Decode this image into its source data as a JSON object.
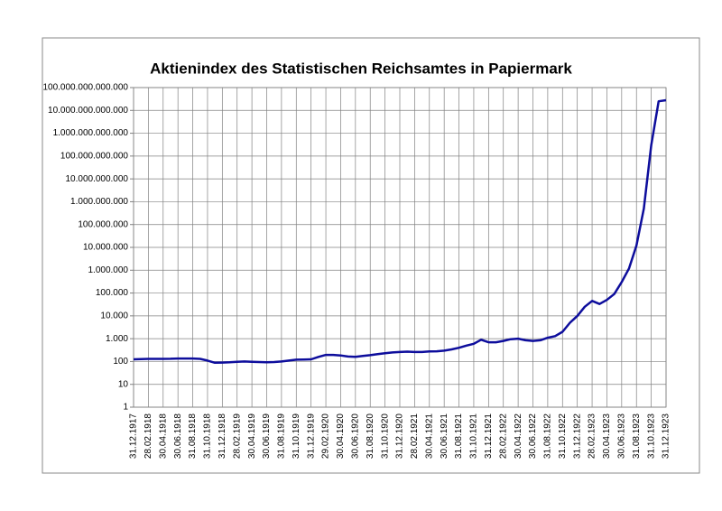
{
  "chart_data": {
    "type": "line",
    "title": "Aktienindex des Statistischen Reichsamtes in Papiermark",
    "categories": [
      "31.12.1917",
      null,
      "28.02.1918",
      null,
      "30.04.1918",
      null,
      "30.06.1918",
      null,
      "31.08.1918",
      null,
      "31.10.1918",
      null,
      "31.12.1918",
      null,
      "28.02.1919",
      null,
      "30.04.1919",
      null,
      "30.06.1919",
      null,
      "31.08.1919",
      null,
      "31.10.1919",
      null,
      "31.12.1919",
      null,
      "29.02.1920",
      null,
      "30.04.1920",
      null,
      "30.06.1920",
      null,
      "31.08.1920",
      null,
      "31.10.1920",
      null,
      "31.12.1920",
      null,
      "28.02.1921",
      null,
      "30.04.1921",
      null,
      "30.06.1921",
      null,
      "31.08.1921",
      null,
      "31.10.1921",
      null,
      "31.12.1921",
      null,
      "28.02.1922",
      null,
      "30.04.1922",
      null,
      "30.06.1922",
      null,
      "31.08.1922",
      null,
      "31.10.1922",
      null,
      "31.12.1922",
      null,
      "28.02.1923",
      null,
      "30.04.1923",
      null,
      "30.06.1923",
      null,
      "31.08.1923",
      null,
      "31.10.1923",
      null,
      "31.12.1923"
    ],
    "series": [
      {
        "name": "Aktienindex",
        "color": "#0d0d9c",
        "values": [
          125,
          128,
          130,
          130,
          130,
          132,
          135,
          135,
          135,
          130,
          110,
          88,
          90,
          92,
          98,
          100,
          98,
          95,
          92,
          95,
          100,
          110,
          120,
          122,
          125,
          160,
          195,
          195,
          185,
          165,
          160,
          175,
          190,
          210,
          230,
          250,
          260,
          270,
          260,
          260,
          275,
          280,
          300,
          340,
          400,
          500,
          600,
          900,
          700,
          700,
          800,
          950,
          1000,
          850,
          800,
          850,
          1100,
          1300,
          2000,
          5000,
          10000,
          25000,
          45000,
          33000,
          50000,
          90000,
          300000,
          1200000,
          12000000,
          500000000,
          300000000000,
          25000000000000,
          28000000000000
        ]
      }
    ],
    "log_scale": true,
    "ylim": [
      1,
      100000000000000
    ],
    "yticks": [
      1,
      10,
      100,
      {
        "value": 1000,
        "label": "1.000"
      },
      {
        "value": 10000,
        "label": "10.000"
      },
      {
        "value": 100000,
        "label": "100.000"
      },
      {
        "value": 1000000,
        "label": "1.000.000"
      },
      {
        "value": 10000000,
        "label": "10.000.000"
      },
      {
        "value": 100000000,
        "label": "100.000.000"
      },
      {
        "value": 1000000000,
        "label": "1.000.000.000"
      },
      {
        "value": 10000000000,
        "label": "10.000.000.000"
      },
      {
        "value": 100000000000,
        "label": "100.000.000.000"
      },
      {
        "value": 1000000000000,
        "label": "1.000.000.000.000"
      },
      {
        "value": 10000000000000,
        "label": "10.000.000.000.000"
      },
      {
        "value": 100000000000000,
        "label": "100.000.000.000.000"
      }
    ],
    "grid": true
  }
}
